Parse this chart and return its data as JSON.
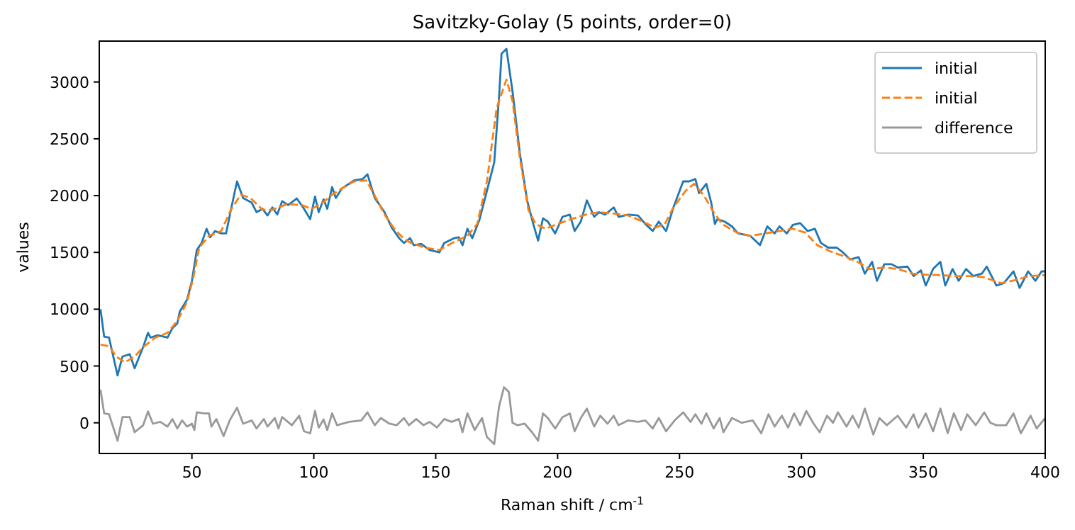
{
  "chart_data": {
    "type": "line",
    "title": "Savitzky-Golay (5 points, order=0)",
    "xlabel": "Raman shift / cm$^{-1}$",
    "ylabel": "values",
    "xlim": [
      12,
      400
    ],
    "ylim": [
      -270,
      3360
    ],
    "xticks": [
      50,
      100,
      150,
      200,
      250,
      300,
      350,
      400
    ],
    "yticks": [
      0,
      500,
      1000,
      1500,
      2000,
      2500,
      3000
    ],
    "legend": "top right",
    "series": [
      {
        "name": "initial",
        "color": "#1f77b4",
        "line_style": "solid",
        "x": [
          12.5,
          14,
          16,
          19.5,
          21.5,
          24.5,
          26.5,
          30,
          32,
          33,
          36,
          40,
          42,
          44,
          45,
          48,
          50,
          52,
          54,
          56,
          57.5,
          59.5,
          62,
          64,
          66,
          68.5,
          71,
          74.5,
          76.5,
          79,
          81,
          83,
          85,
          87,
          89.5,
          93,
          96,
          98.5,
          100.5,
          102,
          104,
          105.5,
          107.5,
          109,
          111.5,
          116.5,
          120,
          122,
          125,
          129,
          132,
          135,
          137,
          139.5,
          141,
          144,
          147.5,
          151.5,
          153.5,
          157.5,
          159.5,
          161,
          163,
          165,
          168,
          171,
          174,
          176,
          177,
          179,
          181.5,
          184.5,
          187.5,
          190,
          192,
          194,
          196,
          199,
          202,
          205,
          207,
          209.5,
          212,
          215,
          217,
          219.5,
          223,
          225,
          229,
          233,
          236,
          239,
          241.5,
          244.5,
          247.5,
          251.5,
          254,
          256.5,
          258,
          261,
          263,
          264.5,
          265.5,
          268.5,
          271.5,
          274,
          279,
          283,
          286,
          289,
          291,
          294,
          296.5,
          299.5,
          302.5,
          305.5,
          308,
          311,
          314.5,
          317,
          320,
          323.5,
          326,
          329,
          331,
          334,
          337,
          339.5,
          343.5,
          346,
          349,
          351,
          354,
          357,
          359,
          362,
          364.5,
          367.5,
          370.5,
          374,
          376,
          380,
          383,
          387,
          389.5,
          393,
          396,
          398.5,
          400
        ],
        "values": [
          1000,
          758,
          750,
          417,
          583,
          604,
          480,
          667,
          792,
          750,
          771,
          750,
          833,
          875,
          979,
          1083,
          1250,
          1521,
          1583,
          1708,
          1633,
          1688,
          1667,
          1667,
          1875,
          2125,
          1979,
          1938,
          1854,
          1883,
          1825,
          1896,
          1833,
          1950,
          1917,
          1975,
          1883,
          1792,
          1992,
          1854,
          1967,
          1883,
          2075,
          1979,
          2063,
          2133,
          2146,
          2188,
          1979,
          1854,
          1717,
          1625,
          1583,
          1625,
          1563,
          1575,
          1521,
          1500,
          1583,
          1625,
          1633,
          1563,
          1708,
          1625,
          1792,
          2042,
          2292,
          2875,
          3250,
          3292,
          2917,
          2375,
          1958,
          1750,
          1604,
          1800,
          1771,
          1667,
          1813,
          1833,
          1688,
          1771,
          1958,
          1813,
          1854,
          1833,
          1896,
          1813,
          1833,
          1825,
          1750,
          1688,
          1771,
          1688,
          1896,
          2125,
          2125,
          2146,
          2021,
          2104,
          1938,
          1750,
          1792,
          1771,
          1729,
          1667,
          1646,
          1563,
          1729,
          1667,
          1729,
          1667,
          1742,
          1758,
          1688,
          1708,
          1583,
          1542,
          1542,
          1500,
          1438,
          1458,
          1313,
          1417,
          1250,
          1396,
          1396,
          1367,
          1375,
          1292,
          1342,
          1208,
          1354,
          1417,
          1208,
          1354,
          1250,
          1354,
          1292,
          1313,
          1375,
          1208,
          1229,
          1333,
          1188,
          1333,
          1250,
          1333,
          1333
        ]
      },
      {
        "name": "initial",
        "color": "#ff7f0e",
        "line_style": "dashed",
        "x": [
          12.5,
          16,
          19,
          22.5,
          26.5,
          30,
          35,
          40,
          44,
          48,
          50.5,
          53,
          57,
          62,
          66,
          70,
          74,
          79,
          83,
          89,
          95,
          99,
          103,
          107,
          111.5,
          116.5,
          121.5,
          125,
          129,
          133,
          137,
          140,
          145.5,
          151.5,
          157.5,
          163,
          167,
          171,
          175,
          179,
          181.5,
          184.5,
          188,
          191,
          195,
          200,
          205.5,
          211.5,
          217,
          223,
          229,
          235,
          240,
          244,
          247.5,
          252.5,
          256,
          260,
          264,
          267.5,
          273.5,
          279,
          285,
          291,
          296.5,
          301.5,
          306.5,
          312,
          318.5,
          323,
          328,
          334,
          339.5,
          345.5,
          351,
          357,
          363,
          368.5,
          374.5,
          378,
          382,
          388,
          393.5,
          400
        ],
        "values": [
          688,
          675,
          583,
          533,
          583,
          667,
          750,
          792,
          896,
          1063,
          1271,
          1542,
          1646,
          1688,
          1875,
          2008,
          1979,
          1875,
          1875,
          1925,
          1917,
          1883,
          1925,
          2000,
          2063,
          2125,
          2133,
          2000,
          1833,
          1708,
          1617,
          1583,
          1542,
          1521,
          1592,
          1646,
          1750,
          2125,
          2771,
          3021,
          2833,
          2333,
          1875,
          1750,
          1708,
          1750,
          1792,
          1833,
          1854,
          1842,
          1825,
          1771,
          1717,
          1750,
          1896,
          2042,
          2104,
          2000,
          1854,
          1750,
          1675,
          1646,
          1667,
          1688,
          1708,
          1675,
          1563,
          1508,
          1458,
          1417,
          1354,
          1367,
          1354,
          1313,
          1304,
          1300,
          1292,
          1292,
          1283,
          1258,
          1229,
          1258,
          1292,
          1300
        ]
      },
      {
        "name": "difference",
        "color": "#999999",
        "line_style": "solid",
        "x": [
          12.5,
          14,
          16,
          19.5,
          21.5,
          24.5,
          26.5,
          30,
          32,
          34,
          37,
          40,
          42,
          44,
          46,
          48,
          50,
          51,
          52,
          55,
          57,
          58,
          60,
          63,
          65.5,
          68.5,
          71,
          74.5,
          76.5,
          79.5,
          81,
          84,
          85.5,
          87,
          91,
          94,
          96,
          98.5,
          100.5,
          102,
          104,
          105.5,
          107.5,
          109.5,
          114.5,
          119.5,
          122,
          125,
          127.5,
          131,
          134,
          137,
          139,
          142,
          145,
          147.5,
          150.5,
          153.5,
          156.5,
          159.5,
          161,
          163,
          166,
          169,
          171,
          174,
          176,
          178,
          180,
          181.5,
          183.5,
          186.5,
          189.5,
          192,
          194,
          196,
          199,
          202,
          205,
          207,
          209.5,
          212,
          215,
          217.5,
          220.5,
          223,
          225,
          229,
          233,
          236,
          239,
          241.5,
          244.5,
          248,
          251.5,
          254.5,
          256.5,
          259,
          261,
          264,
          266.5,
          268,
          271.5,
          275.5,
          280,
          283.5,
          286.5,
          289,
          292,
          294.5,
          297,
          299.5,
          302,
          305,
          307.5,
          310.5,
          313,
          315,
          318.5,
          321,
          323.5,
          326,
          329.5,
          332,
          335,
          339.5,
          343,
          346,
          348,
          351,
          354,
          357,
          360,
          362.5,
          365.5,
          368,
          371.5,
          375,
          377.5,
          380,
          384,
          387,
          390,
          394,
          396.5,
          400
        ],
        "values": [
          292,
          83,
          75,
          -158,
          50,
          50,
          -83,
          -21,
          100,
          -8,
          8,
          -33,
          33,
          -50,
          21,
          -33,
          -8,
          -63,
          92,
          83,
          83,
          -33,
          33,
          -117,
          21,
          133,
          -8,
          21,
          -50,
          33,
          -33,
          42,
          -50,
          50,
          -21,
          62,
          -75,
          -92,
          104,
          -42,
          29,
          -63,
          83,
          -21,
          8,
          21,
          92,
          -21,
          42,
          -8,
          -21,
          42,
          -21,
          33,
          -21,
          8,
          -42,
          33,
          8,
          33,
          -83,
          83,
          -63,
          42,
          -125,
          -188,
          146,
          313,
          271,
          0,
          -21,
          -8,
          -83,
          -158,
          83,
          42,
          -50,
          50,
          83,
          -75,
          42,
          125,
          -33,
          62,
          -8,
          62,
          -21,
          21,
          8,
          21,
          -50,
          42,
          -75,
          21,
          92,
          8,
          75,
          -8,
          83,
          -50,
          42,
          -83,
          42,
          0,
          21,
          -92,
          75,
          -33,
          62,
          -42,
          83,
          -21,
          104,
          -8,
          -83,
          62,
          0,
          92,
          -33,
          62,
          -42,
          125,
          -104,
          42,
          -21,
          62,
          -42,
          75,
          -42,
          83,
          -75,
          125,
          -92,
          83,
          -63,
          75,
          -21,
          92,
          0,
          -21,
          -21,
          83,
          -92,
          62,
          -50,
          42
        ]
      }
    ]
  }
}
